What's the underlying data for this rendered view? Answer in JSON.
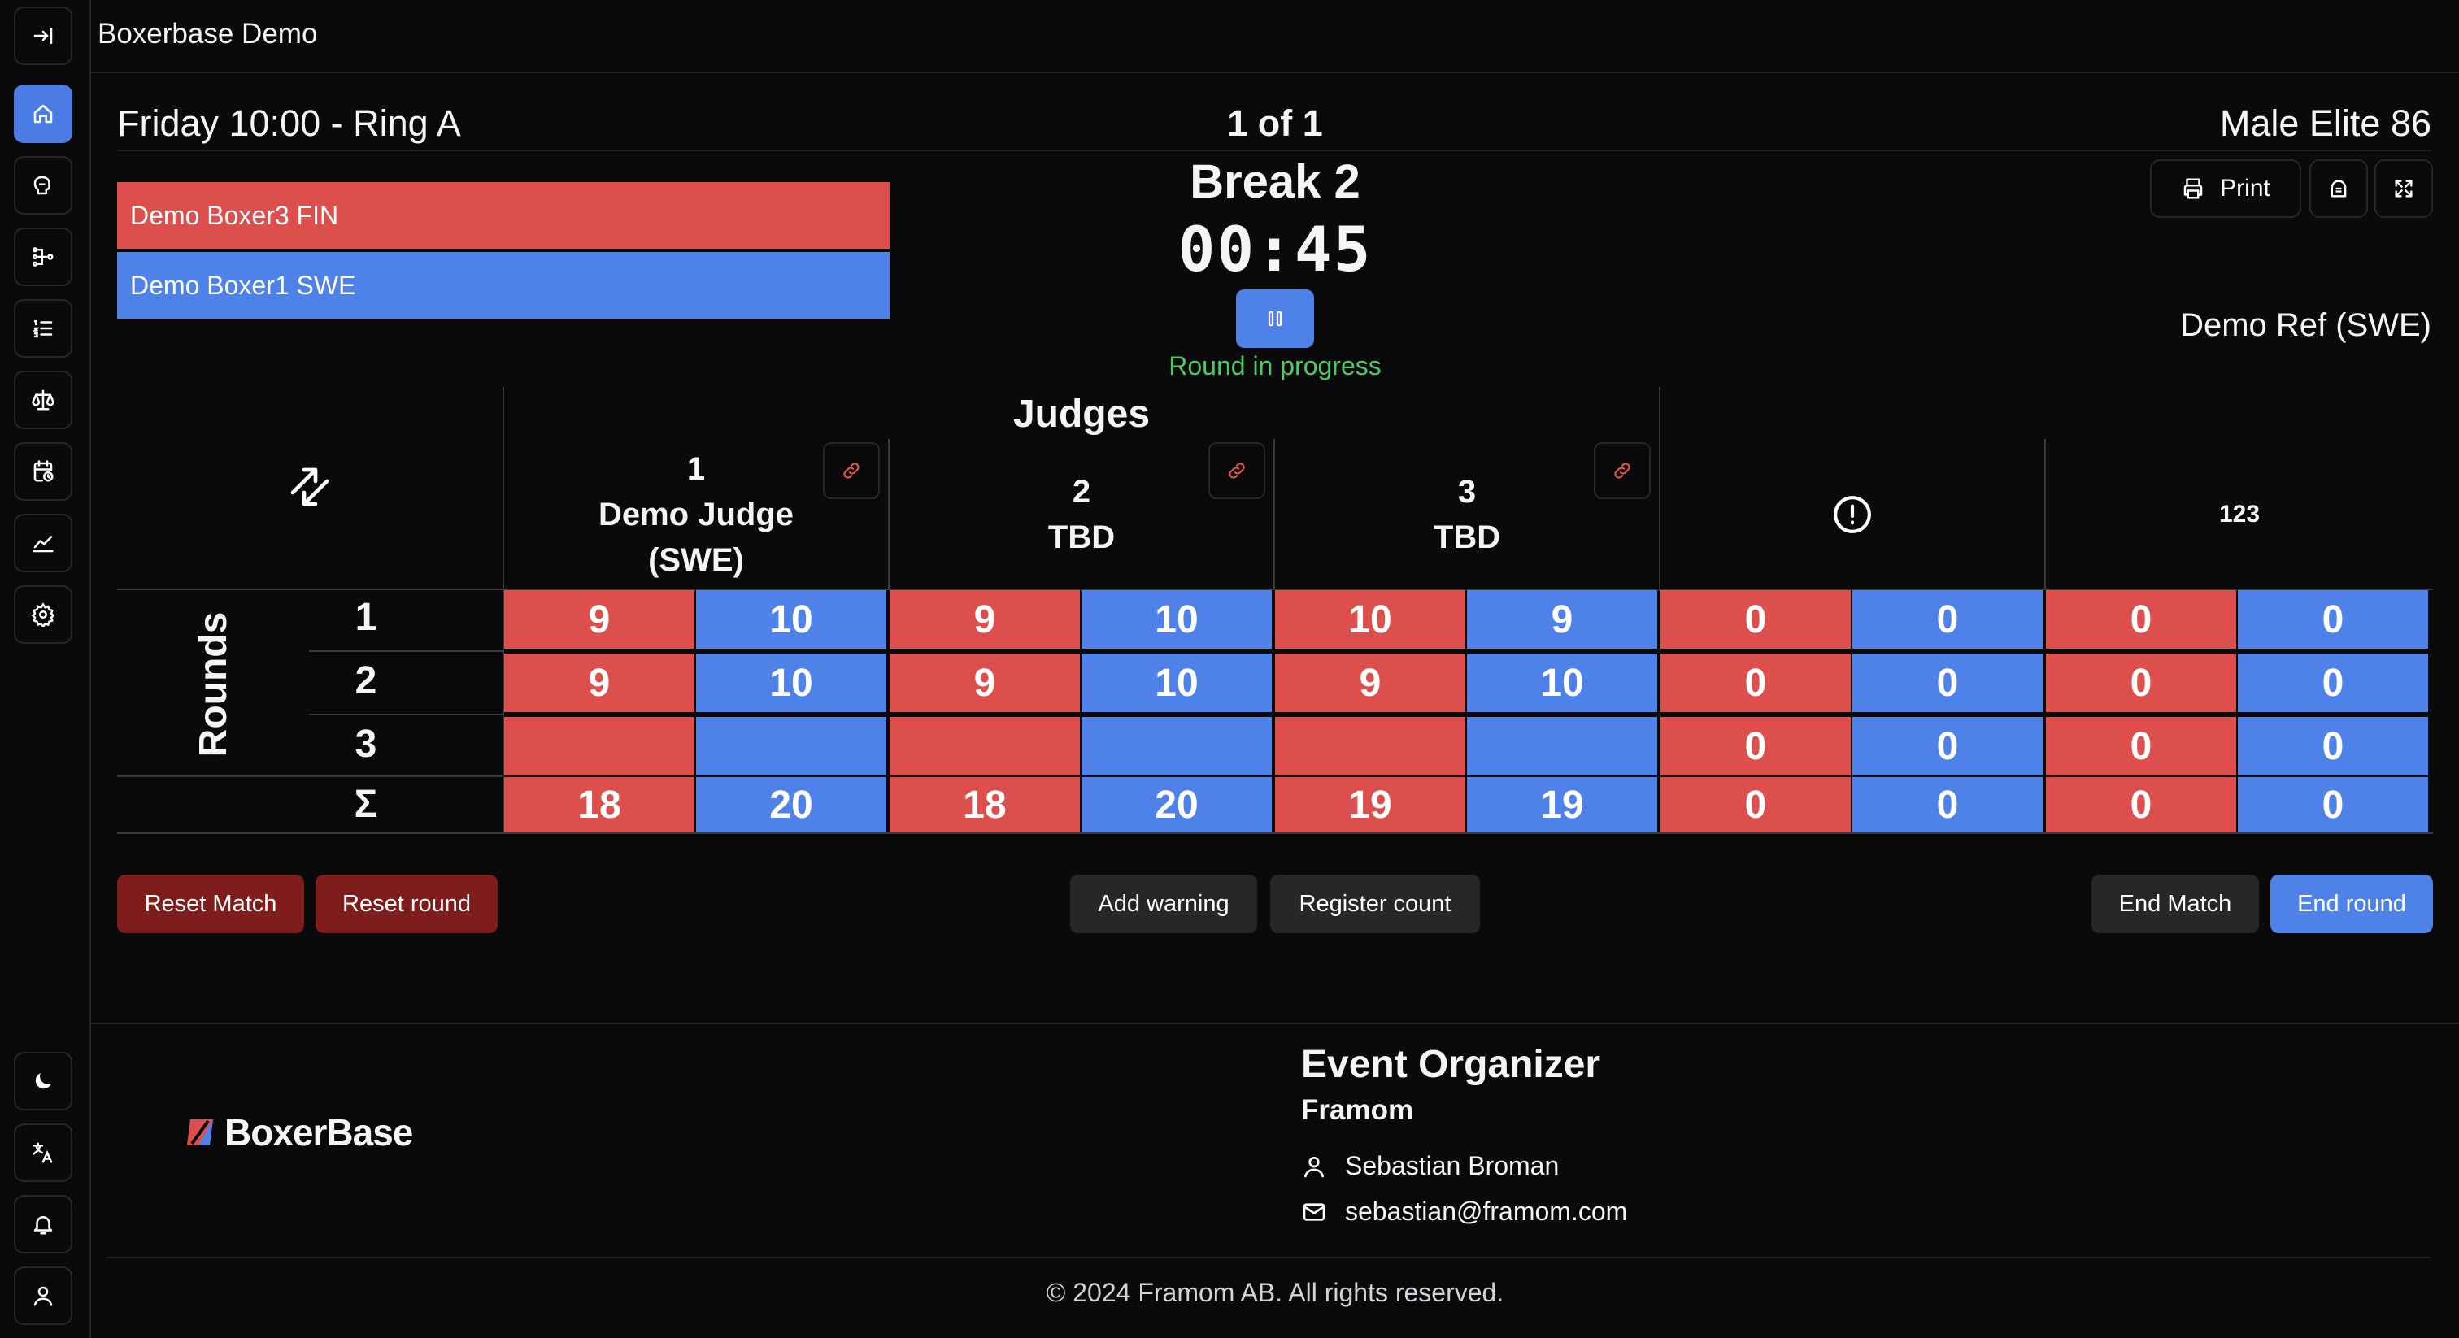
{
  "app": {
    "title": "Boxerbase Demo"
  },
  "sidebar": {
    "items": [
      {
        "name": "collapse-sidebar",
        "icon": "arrow-right-to-line-icon"
      },
      {
        "name": "home",
        "icon": "home-icon",
        "active": true
      },
      {
        "name": "boxers",
        "icon": "glove-icon"
      },
      {
        "name": "brackets",
        "icon": "bracket-icon"
      },
      {
        "name": "list",
        "icon": "ordered-list-icon"
      },
      {
        "name": "judging",
        "icon": "scales-icon"
      },
      {
        "name": "schedule",
        "icon": "calendar-clock-icon"
      },
      {
        "name": "statistics",
        "icon": "chart-line-icon"
      },
      {
        "name": "settings",
        "icon": "gear-icon"
      }
    ],
    "bottom": [
      {
        "name": "theme-toggle",
        "icon": "moon-icon"
      },
      {
        "name": "language",
        "icon": "translate-icon"
      },
      {
        "name": "notifications",
        "icon": "bell-icon"
      },
      {
        "name": "profile",
        "icon": "user-icon"
      }
    ]
  },
  "match": {
    "session": "Friday 10:00 - Ring A",
    "index": "1 of 1",
    "weight_class": "Male Elite 86",
    "round_name": "Break 2",
    "timer": "00:45",
    "status": "Round in progress",
    "referee": "Demo Ref (SWE)",
    "red_corner": "Demo Boxer3 FIN",
    "blue_corner": "Demo Boxer1 SWE",
    "print_label": "Print"
  },
  "table": {
    "judges_title": "Judges",
    "rounds_label": "Rounds",
    "judges": [
      {
        "number": "1",
        "name_line1": "Demo Judge",
        "name_line2": "(SWE)"
      },
      {
        "number": "2",
        "name_line1": "TBD",
        "name_line2": ""
      },
      {
        "number": "3",
        "name_line1": "TBD",
        "name_line2": ""
      }
    ],
    "warning_icon": "alert-circle-icon",
    "count_label": "123",
    "rows": [
      {
        "label": "1",
        "cells": [
          "9",
          "10",
          "9",
          "10",
          "10",
          "9",
          "0",
          "0",
          "0",
          "0"
        ]
      },
      {
        "label": "2",
        "cells": [
          "9",
          "10",
          "9",
          "10",
          "9",
          "10",
          "0",
          "0",
          "0",
          "0"
        ]
      },
      {
        "label": "3",
        "cells": [
          "",
          "",
          "",
          "",
          "",
          "",
          "0",
          "0",
          "0",
          "0"
        ]
      },
      {
        "label": "Σ",
        "cells": [
          "18",
          "20",
          "18",
          "20",
          "19",
          "19",
          "0",
          "0",
          "0",
          "0"
        ]
      }
    ]
  },
  "actions": {
    "reset_match": "Reset Match",
    "reset_round": "Reset round",
    "add_warning": "Add warning",
    "register_count": "Register count",
    "end_match": "End Match",
    "end_round": "End round"
  },
  "footer": {
    "logo_text": "BoxerBase",
    "org_title": "Event Organizer",
    "org_name": "Framom",
    "contact_name": "Sebastian Broman",
    "contact_email": "sebastian@framom.com",
    "copyright": "© 2024 Framom AB. All rights reserved."
  },
  "colors": {
    "red_corner": "#dd4f4c",
    "blue_corner": "#4f82e8",
    "status_green": "#4ec764",
    "danger_dark": "#7f1d1d",
    "background": "#0a0a0b"
  }
}
